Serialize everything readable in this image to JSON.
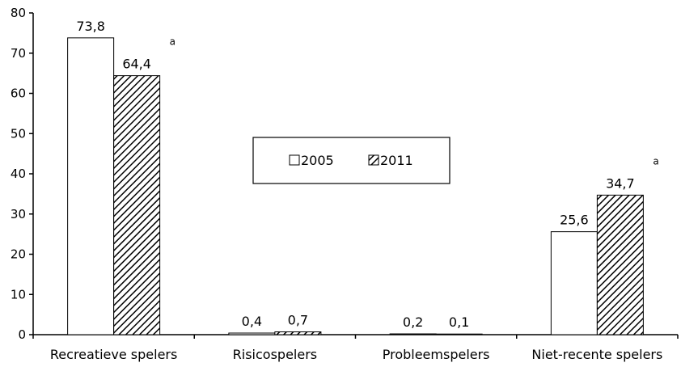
{
  "chart_data": {
    "type": "bar",
    "categories": [
      "Recreatieve spelers",
      "Risicospelers",
      "Probleemspelers",
      "Niet-recente spelers"
    ],
    "series": [
      {
        "name": "2005",
        "values": [
          73.8,
          0.4,
          0.2,
          25.6
        ],
        "labels": [
          "73,8",
          "0,4",
          "0,2",
          "25,6"
        ],
        "fill": "#ffffff",
        "pattern": "none"
      },
      {
        "name": "2011",
        "values": [
          64.4,
          0.7,
          0.1,
          34.7
        ],
        "labels": [
          "64,4",
          "0,7",
          "0,1",
          "34,7"
        ],
        "fill": "#ffffff",
        "pattern": "diagonal-hatch"
      }
    ],
    "annotations": [
      {
        "category": "Recreatieve spelers",
        "series": "2011",
        "text": "a"
      },
      {
        "category": "Niet-recente spelers",
        "series": "2011",
        "text": "a"
      }
    ],
    "yticks": [
      "0",
      "10",
      "20",
      "30",
      "40",
      "50",
      "60",
      "70",
      "80"
    ],
    "ylim": [
      0,
      80
    ],
    "title": "",
    "xlabel": "",
    "ylabel": "",
    "grid": false,
    "legend_position": "center"
  }
}
